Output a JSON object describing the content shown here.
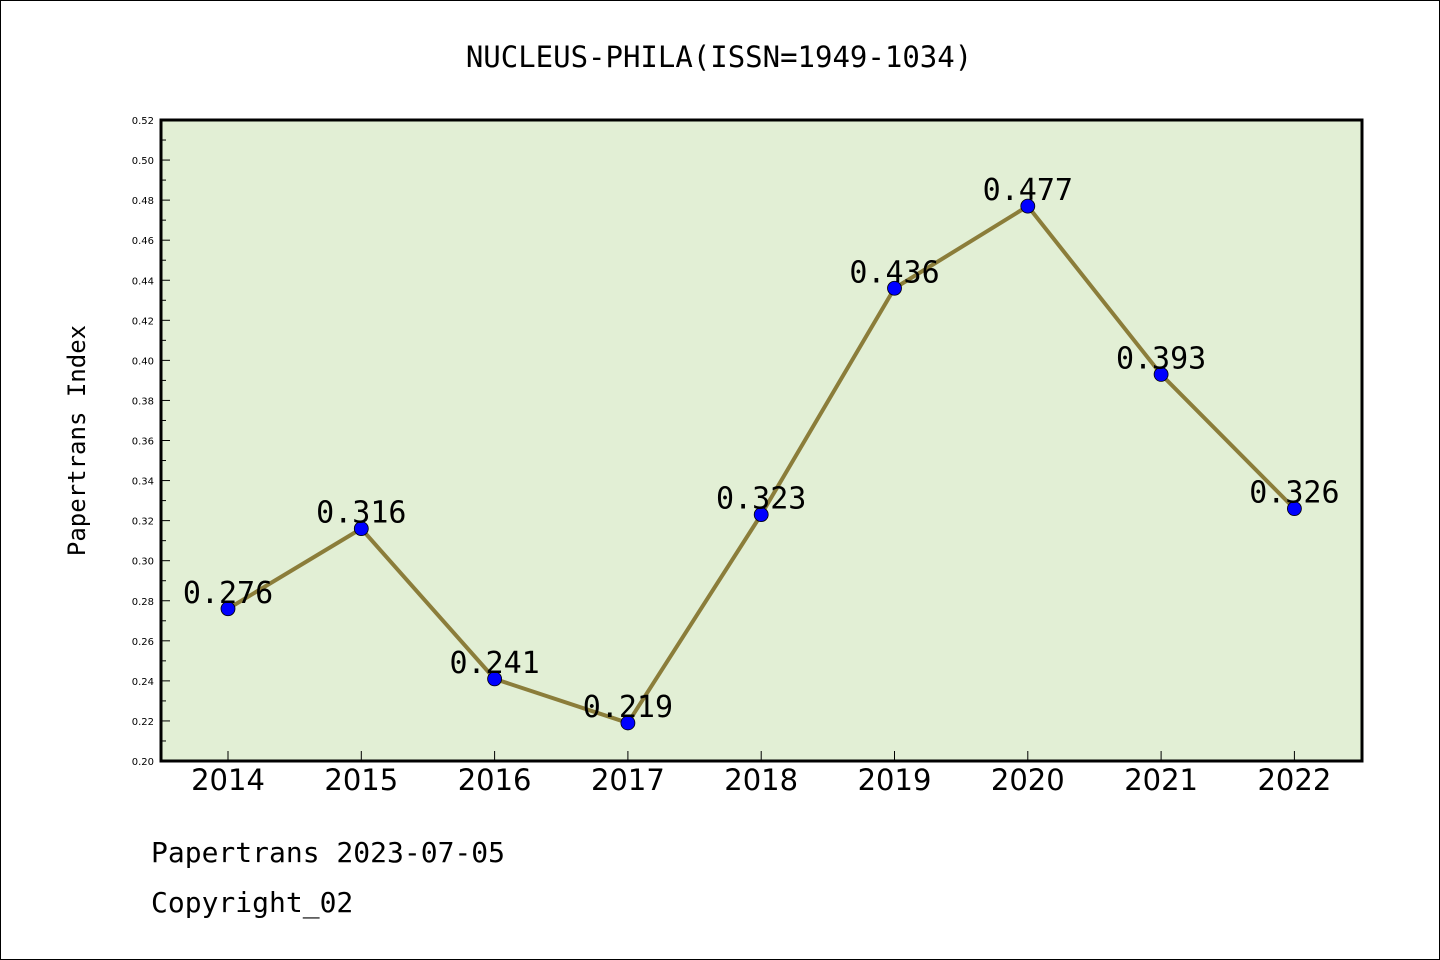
{
  "chart_data": {
    "type": "line",
    "title": "NUCLEUS-PHILA(ISSN=1949-1034)",
    "xlabel": "",
    "ylabel": "Papertrans Index",
    "categories": [
      "2014",
      "2015",
      "2016",
      "2017",
      "2018",
      "2019",
      "2020",
      "2021",
      "2022"
    ],
    "series": [
      {
        "values": [
          0.276,
          0.316,
          0.241,
          0.219,
          0.323,
          0.436,
          0.477,
          0.393,
          0.326
        ],
        "data_labels": [
          "0.276",
          "0.316",
          "0.241",
          "0.219",
          "0.323",
          "0.436",
          "0.477",
          "0.393",
          "0.326"
        ]
      }
    ],
    "ylim": [
      0.2,
      0.52
    ],
    "y_ticks": [
      "0.20",
      "0.22",
      "0.24",
      "0.26",
      "0.28",
      "0.30",
      "0.32",
      "0.34",
      "0.36",
      "0.38",
      "0.40",
      "0.42",
      "0.44",
      "0.46",
      "0.48",
      "0.50",
      "0.52"
    ],
    "grid": false,
    "legend": "none",
    "colors": {
      "plot_background": "#e2efd5",
      "line": "#8b7d3a",
      "marker": "#0000ff",
      "axis": "#000000"
    }
  },
  "footer": {
    "line1": "Papertrans 2023-07-05",
    "line2": "Copyright_02"
  }
}
